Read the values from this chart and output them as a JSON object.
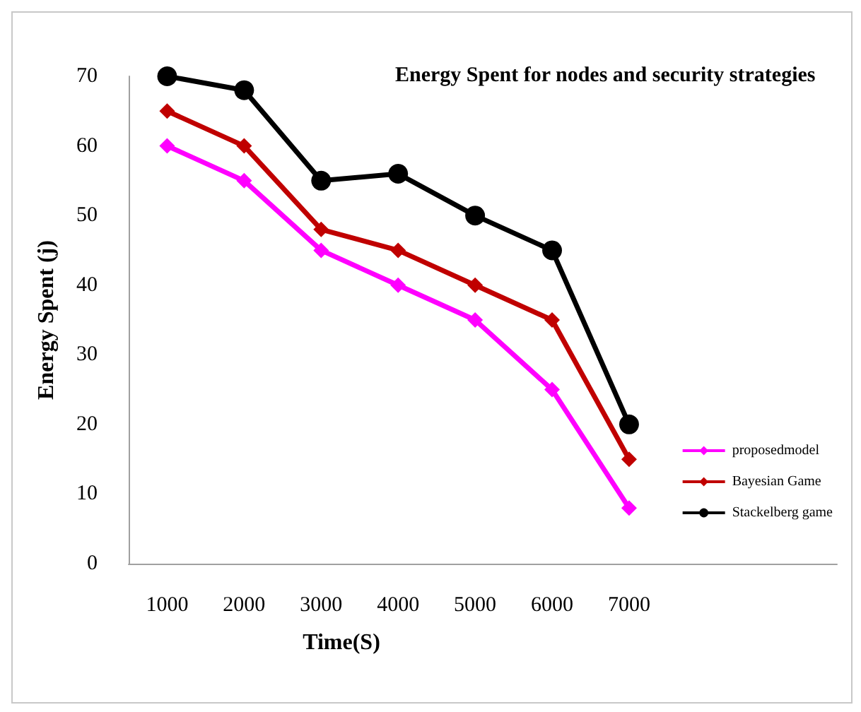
{
  "chart_data": {
    "type": "line",
    "title": "Energy Spent for nodes and security strategies",
    "xlabel": "Time(S)",
    "ylabel": "Energy Spent (j)",
    "x": [
      1000,
      2000,
      3000,
      4000,
      5000,
      6000,
      7000
    ],
    "xlim": [
      500,
      9700
    ],
    "xticks": [
      1000,
      2000,
      3000,
      4000,
      5000,
      6000,
      7000
    ],
    "ylim": [
      0,
      70
    ],
    "yticks": [
      0,
      10,
      20,
      30,
      40,
      50,
      60,
      70
    ],
    "series": [
      {
        "name": "proposedmodel",
        "color": "#ff00ff",
        "marker": "diamond",
        "values": [
          60,
          55,
          45,
          40,
          35,
          25,
          8
        ]
      },
      {
        "name": "Bayesian Game",
        "color": "#c00000",
        "marker": "diamond",
        "values": [
          65,
          60,
          48,
          45,
          40,
          35,
          15
        ]
      },
      {
        "name": "Stackelberg game",
        "color": "#000000",
        "marker": "circle",
        "values": [
          70,
          68,
          55,
          56,
          50,
          45,
          20
        ]
      }
    ],
    "grid": false,
    "legend": "right"
  }
}
